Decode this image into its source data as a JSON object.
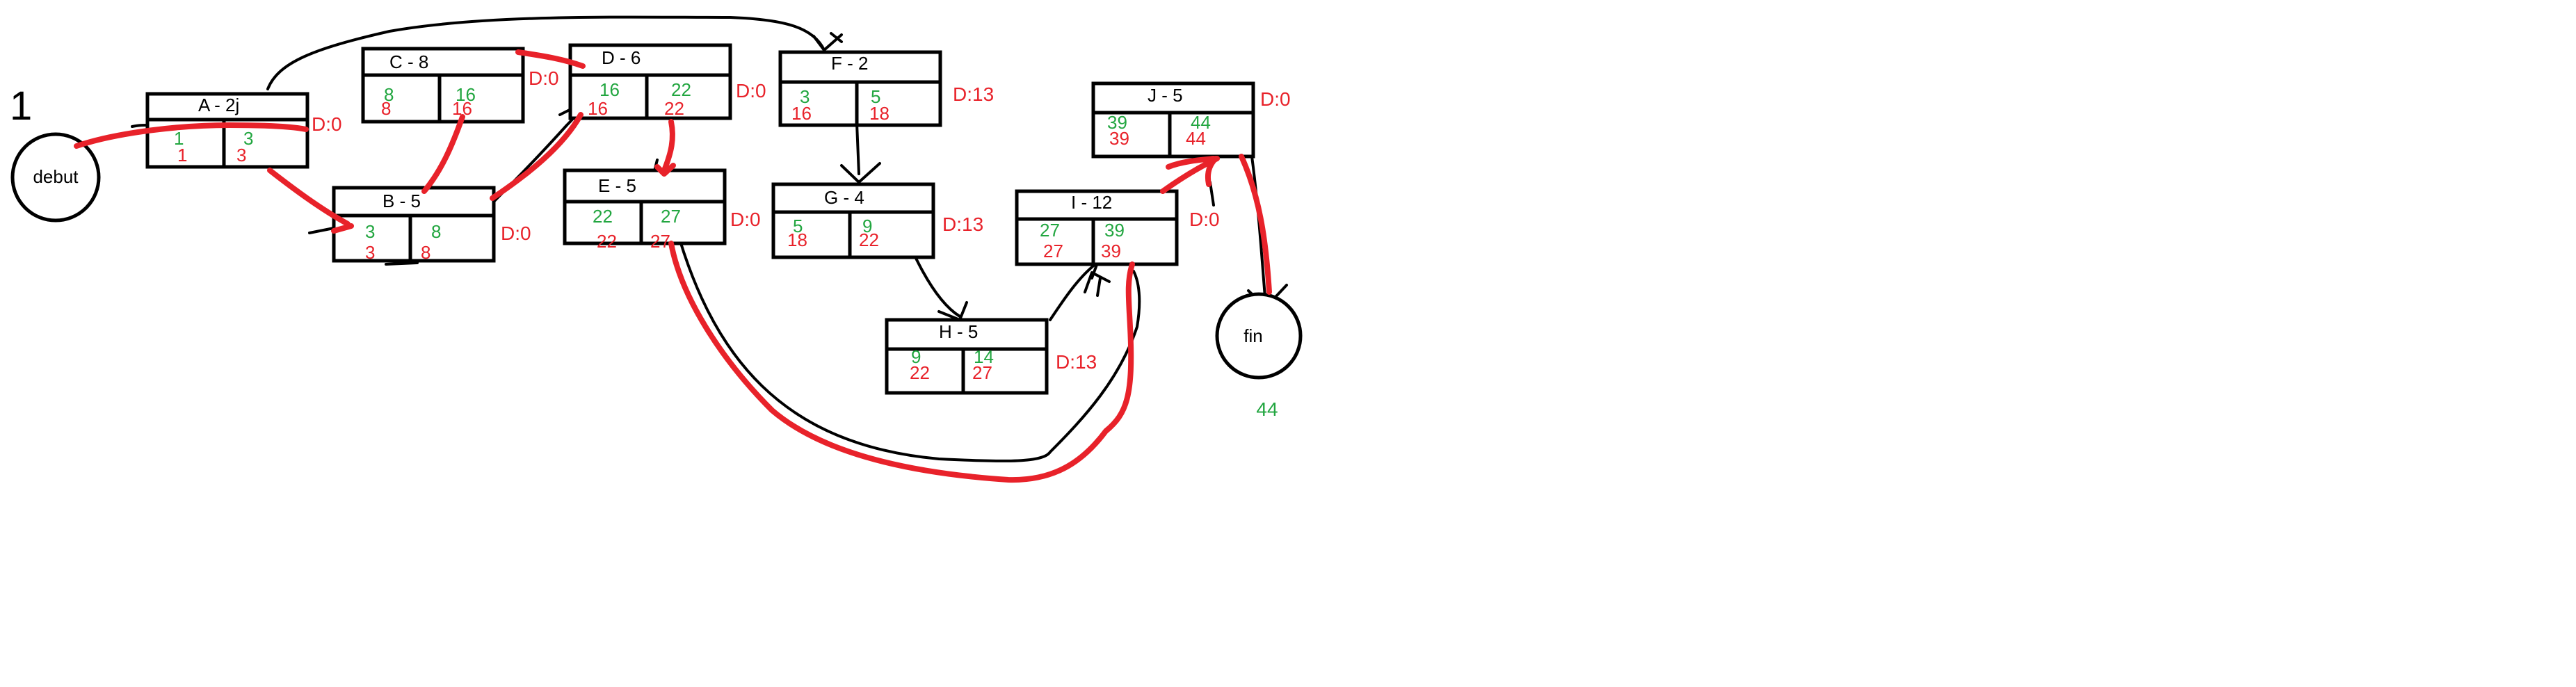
{
  "page_marker": "1",
  "start_node": {
    "label": "debut"
  },
  "end_node": {
    "label": "fin",
    "total": "44"
  },
  "tasks": [
    {
      "id": "A",
      "title": "A - 2j",
      "es": "1",
      "ef": "3",
      "ls": "1",
      "lf": "3",
      "slack": "D:0"
    },
    {
      "id": "B",
      "title": "B - 5",
      "es": "3",
      "ef": "8",
      "ls": "3",
      "lf": "8",
      "slack": "D:0"
    },
    {
      "id": "C",
      "title": "C - 8",
      "es": "8",
      "ef": "16",
      "ls": "8",
      "lf": "16",
      "slack": "D:0"
    },
    {
      "id": "D",
      "title": "D - 6",
      "es": "16",
      "ef": "22",
      "ls": "16",
      "lf": "22",
      "slack": "D:0"
    },
    {
      "id": "E",
      "title": "E - 5",
      "es": "22",
      "ef": "27",
      "ls": "22",
      "lf": "27",
      "slack": "D:0"
    },
    {
      "id": "F",
      "title": "F - 2",
      "es": "3",
      "ef": "5",
      "ls": "16",
      "lf": "18",
      "slack": "D:13"
    },
    {
      "id": "G",
      "title": "G - 4",
      "es": "5",
      "ef": "9",
      "ls": "18",
      "lf": "22",
      "slack": "D:13"
    },
    {
      "id": "H",
      "title": "H - 5",
      "es": "9",
      "ef": "14",
      "ls": "22",
      "lf": "27",
      "slack": "D:13"
    },
    {
      "id": "I",
      "title": "I - 12",
      "es": "27",
      "ef": "39",
      "ls": "27",
      "lf": "39",
      "slack": "D:0"
    },
    {
      "id": "J",
      "title": "J - 5",
      "es": "39",
      "ef": "44",
      "ls": "39",
      "lf": "44",
      "slack": "D:0"
    }
  ],
  "colors": {
    "early": "#22a640",
    "late": "#e8222a",
    "critical_path": "#e8222a",
    "ink": "#000000"
  }
}
